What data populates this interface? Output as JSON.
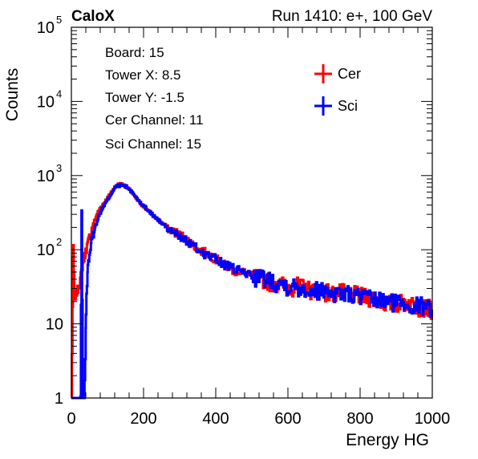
{
  "header": {
    "experiment": "CaloX",
    "run_info": "Run 1410: e+, 100 GeV"
  },
  "info_box": {
    "lines": [
      "Board: 15",
      "Tower X: 8.5",
      "Tower Y: -1.5",
      "Cer Channel: 11",
      "Sci Channel: 15"
    ]
  },
  "chart_data": {
    "type": "line",
    "xlabel": "Energy HG",
    "ylabel": "Counts",
    "xlim": [
      0,
      1000
    ],
    "ylim": [
      1,
      100000
    ],
    "yscale": "log",
    "x_ticks": [
      0,
      200,
      400,
      600,
      800,
      1000
    ],
    "y_ticks": [
      {
        "value": 1,
        "base": "1",
        "exp": ""
      },
      {
        "value": 10,
        "base": "10",
        "exp": ""
      },
      {
        "value": 100,
        "base": "10",
        "exp": "2"
      },
      {
        "value": 1000,
        "base": "10",
        "exp": "3"
      },
      {
        "value": 10000,
        "base": "10",
        "exp": "4"
      },
      {
        "value": 100000,
        "base": "10",
        "exp": "5"
      }
    ],
    "legend_position": "top-right",
    "series": [
      {
        "name": "Cer",
        "color": "#ff0000",
        "points": [
          [
            0,
            1
          ],
          [
            5,
            110
          ],
          [
            8,
            22
          ],
          [
            12,
            25
          ],
          [
            18,
            30
          ],
          [
            24,
            40
          ],
          [
            30,
            60
          ],
          [
            40,
            100
          ],
          [
            50,
            150
          ],
          [
            60,
            220
          ],
          [
            70,
            300
          ],
          [
            80,
            370
          ],
          [
            90,
            430
          ],
          [
            100,
            500
          ],
          [
            110,
            600
          ],
          [
            120,
            700
          ],
          [
            130,
            760
          ],
          [
            140,
            760
          ],
          [
            150,
            720
          ],
          [
            160,
            650
          ],
          [
            170,
            560
          ],
          [
            180,
            480
          ],
          [
            200,
            380
          ],
          [
            225,
            290
          ],
          [
            250,
            230
          ],
          [
            275,
            185
          ],
          [
            300,
            160
          ],
          [
            325,
            130
          ],
          [
            350,
            100
          ],
          [
            375,
            90
          ],
          [
            400,
            75
          ],
          [
            425,
            62
          ],
          [
            450,
            52
          ],
          [
            475,
            50
          ],
          [
            500,
            44
          ],
          [
            525,
            42
          ],
          [
            550,
            38
          ],
          [
            575,
            35
          ],
          [
            600,
            32
          ],
          [
            625,
            33
          ],
          [
            650,
            30
          ],
          [
            675,
            29
          ],
          [
            700,
            28
          ],
          [
            725,
            26
          ],
          [
            750,
            27
          ],
          [
            775,
            26
          ],
          [
            800,
            24
          ],
          [
            825,
            23
          ],
          [
            850,
            21
          ],
          [
            875,
            19
          ],
          [
            900,
            19
          ],
          [
            925,
            20
          ],
          [
            950,
            18
          ],
          [
            975,
            17
          ],
          [
            1000,
            16
          ]
        ]
      },
      {
        "name": "Sci",
        "color": "#0000ff",
        "points": [
          [
            0,
            1
          ],
          [
            25,
            1
          ],
          [
            28,
            340
          ],
          [
            31,
            1
          ],
          [
            35,
            1
          ],
          [
            38,
            3
          ],
          [
            40,
            15
          ],
          [
            45,
            60
          ],
          [
            55,
            130
          ],
          [
            65,
            200
          ],
          [
            75,
            280
          ],
          [
            85,
            360
          ],
          [
            95,
            430
          ],
          [
            105,
            520
          ],
          [
            115,
            630
          ],
          [
            125,
            720
          ],
          [
            135,
            740
          ],
          [
            145,
            730
          ],
          [
            155,
            690
          ],
          [
            165,
            620
          ],
          [
            175,
            540
          ],
          [
            190,
            440
          ],
          [
            210,
            350
          ],
          [
            230,
            280
          ],
          [
            250,
            225
          ],
          [
            275,
            180
          ],
          [
            300,
            150
          ],
          [
            325,
            125
          ],
          [
            350,
            100
          ],
          [
            375,
            85
          ],
          [
            400,
            75
          ],
          [
            425,
            62
          ],
          [
            450,
            55
          ],
          [
            475,
            50
          ],
          [
            500,
            45
          ],
          [
            525,
            42
          ],
          [
            550,
            40
          ],
          [
            575,
            36
          ],
          [
            600,
            33
          ],
          [
            625,
            32
          ],
          [
            650,
            30
          ],
          [
            675,
            29
          ],
          [
            700,
            29
          ],
          [
            725,
            27
          ],
          [
            750,
            26
          ],
          [
            775,
            25
          ],
          [
            800,
            24
          ],
          [
            825,
            22
          ],
          [
            850,
            21
          ],
          [
            875,
            20
          ],
          [
            900,
            20
          ],
          [
            925,
            19
          ],
          [
            950,
            18
          ],
          [
            975,
            18
          ],
          [
            1000,
            17
          ]
        ]
      }
    ]
  }
}
